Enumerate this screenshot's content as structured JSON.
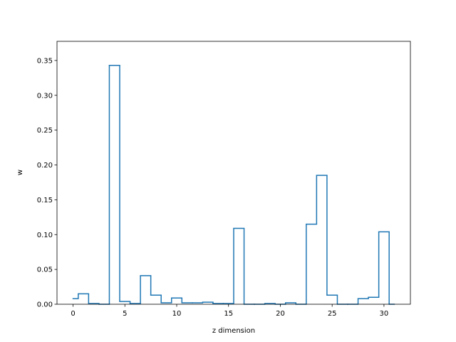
{
  "chart_data": {
    "type": "step",
    "xlabel": "z dimension",
    "ylabel": "w",
    "xlim": [
      -1.55,
      32.55
    ],
    "ylim": [
      0,
      0.3775
    ],
    "xticks": [
      0,
      5,
      10,
      15,
      20,
      25,
      30
    ],
    "yticks": [
      0.0,
      0.05,
      0.1,
      0.15,
      0.2,
      0.25,
      0.3,
      0.35
    ],
    "ytick_labels": [
      "0.00",
      "0.05",
      "0.10",
      "0.15",
      "0.20",
      "0.25",
      "0.30",
      "0.35"
    ],
    "grid": false,
    "series": [
      {
        "color": "#1f77b4",
        "x": [
          0,
          1,
          2,
          3,
          4,
          5,
          6,
          7,
          8,
          9,
          10,
          11,
          12,
          13,
          14,
          15,
          16,
          17,
          18,
          19,
          20,
          21,
          22,
          23,
          24,
          25,
          26,
          27,
          28,
          29,
          30,
          31
        ],
        "values": [
          0.008,
          0.015,
          0.001,
          0.0,
          0.343,
          0.004,
          0.001,
          0.041,
          0.013,
          0.002,
          0.009,
          0.002,
          0.002,
          0.003,
          0.001,
          0.001,
          0.109,
          0.0,
          0.0,
          0.001,
          0.0,
          0.002,
          0.0,
          0.115,
          0.185,
          0.013,
          0.0,
          0.0,
          0.008,
          0.01,
          0.104,
          0.0
        ]
      }
    ]
  }
}
